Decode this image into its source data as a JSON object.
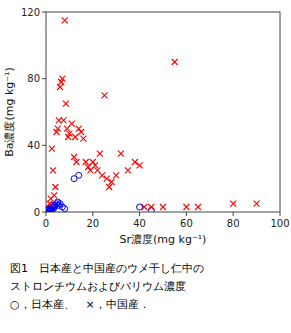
{
  "chart_data": {
    "type": "scatter",
    "x_label": "Sr濃度(mg kg⁻¹)",
    "y_label": "Ba濃度(mg kg⁻¹)",
    "xlim": [
      0,
      100
    ],
    "ylim": [
      0,
      120
    ],
    "xticks": [
      0,
      20,
      40,
      60,
      80,
      100
    ],
    "yticks": [
      0,
      40,
      80,
      120
    ],
    "grid": false,
    "annotations": [
      "図1　日本産と中国産のウメ干し仁中の",
      "ストロンチウムおよびバリウム濃度",
      "○，日本産、　×，中国産．"
    ],
    "series": [
      {
        "color": "#0000ff",
        "marker": "open-circle",
        "x": [
          0.5,
          0.8,
          1.0,
          1.2,
          1.5,
          1.8,
          2.0,
          2.2,
          2.5,
          2.8,
          3.0,
          3.2,
          3.5,
          4.0,
          4.5,
          5.0,
          5.5,
          6.0,
          7.0,
          8.0,
          12.0,
          14.0,
          40.0,
          45.0
        ],
        "values": [
          1.0,
          1.5,
          2.0,
          1.0,
          2.0,
          1.0,
          1.5,
          2.0,
          1.5,
          3.0,
          4.0,
          2.0,
          3.0,
          4.0,
          5.0,
          6.0,
          4.0,
          5.0,
          3.0,
          2.0,
          20.0,
          22.0,
          3.0,
          1.0
        ]
      },
      {
        "color": "#ff0000",
        "marker": "x",
        "x": [
          1.5,
          2.0,
          2.5,
          3.0,
          3.5,
          4.0,
          4.5,
          5.0,
          5.5,
          6.0,
          6.5,
          7.0,
          7.5,
          8.0,
          8.5,
          9.0,
          9.5,
          10.0,
          11.0,
          12.0,
          12.5,
          13.0,
          14.0,
          15.0,
          16.0,
          17.0,
          18.0,
          19.0,
          20.0,
          21.0,
          22.0,
          23.0,
          24.0,
          25.0,
          26.0,
          27.0,
          28.0,
          30.0,
          32.0,
          35.0,
          38.0,
          40.0,
          42.0,
          45.0,
          50.0,
          55.0,
          60.0,
          65.0,
          80.0,
          90.0
        ],
        "values": [
          5.0,
          8.0,
          38.0,
          25.0,
          10.0,
          15.0,
          48.0,
          50.0,
          55.0,
          75.0,
          78.0,
          80.0,
          55.0,
          115.0,
          65.0,
          50.0,
          45.0,
          47.0,
          53.0,
          33.0,
          45.0,
          30.0,
          50.0,
          48.0,
          44.0,
          30.0,
          27.0,
          25.0,
          30.0,
          28.0,
          25.0,
          35.0,
          22.0,
          70.0,
          20.0,
          15.0,
          18.0,
          22.0,
          35.0,
          25.0,
          30.0,
          28.0,
          3.0,
          3.0,
          3.0,
          90.0,
          3.0,
          3.0,
          5.0,
          5.0
        ]
      }
    ]
  }
}
